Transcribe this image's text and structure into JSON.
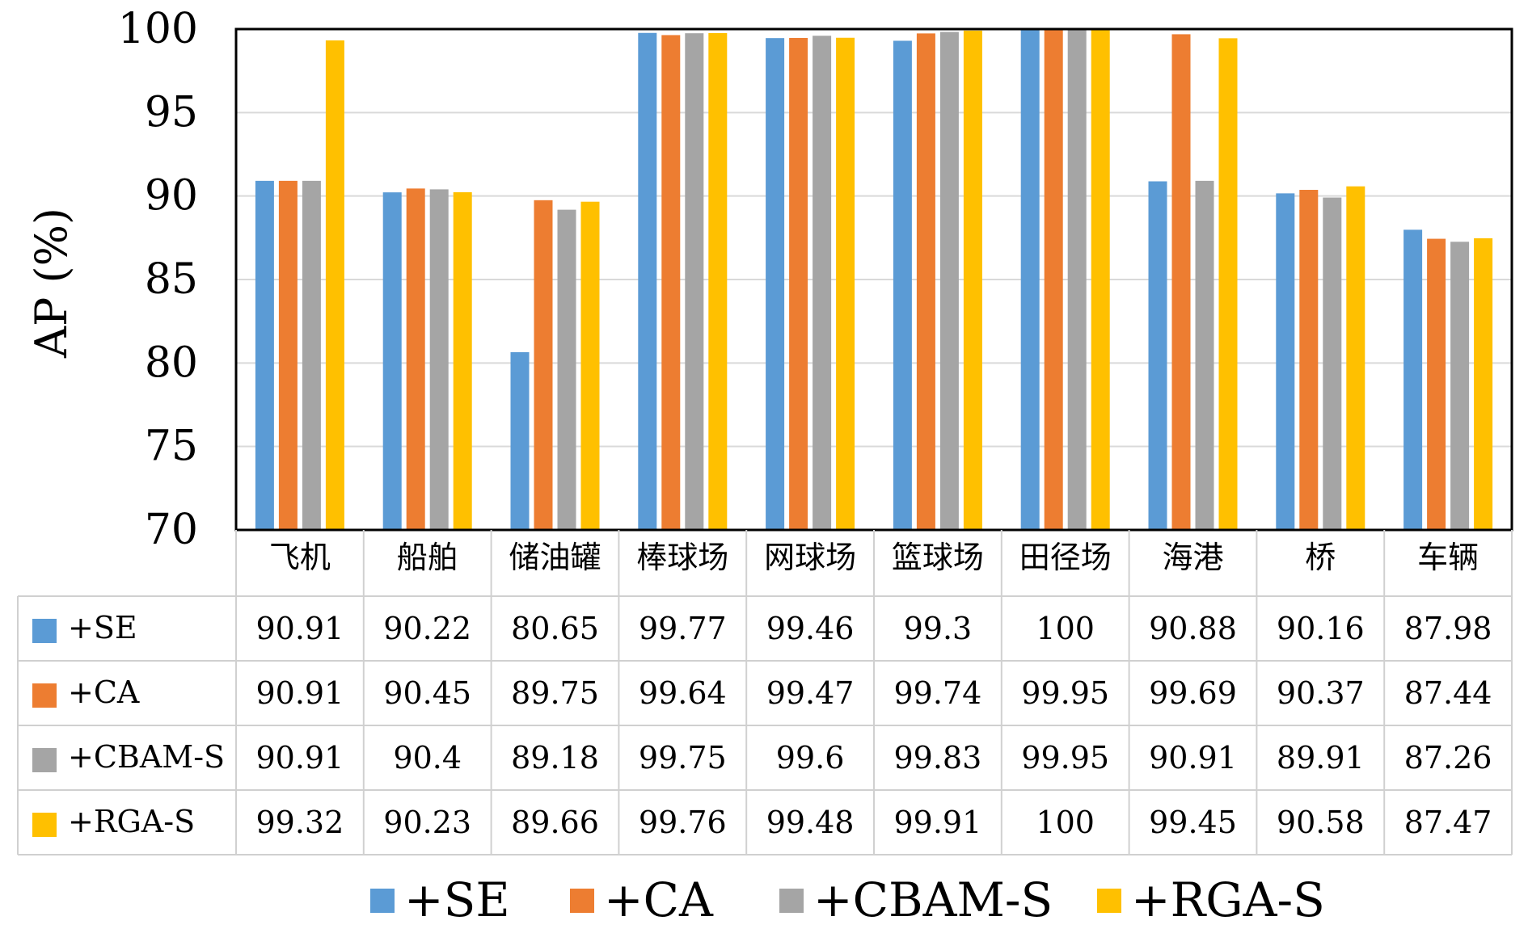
{
  "chart_data": {
    "type": "bar",
    "ylabel": "AP (%)",
    "ylim": [
      70,
      100
    ],
    "yticks": [
      "70",
      "75",
      "80",
      "85",
      "90",
      "95",
      "100"
    ],
    "grid": true,
    "legend_position": "bottom",
    "categories": [
      "飞机",
      "船舶",
      "储油罐",
      "棒球场",
      "网球场",
      "篮球场",
      "田径场",
      "海港",
      "桥",
      "车辆"
    ],
    "series": [
      {
        "name": "+SE",
        "color": "#5B9BD5",
        "values": [
          90.91,
          90.22,
          80.65,
          99.77,
          99.46,
          99.3,
          100,
          90.88,
          90.16,
          87.98
        ]
      },
      {
        "name": "+CA",
        "color": "#ED7D31",
        "values": [
          90.91,
          90.45,
          89.75,
          99.64,
          99.47,
          99.74,
          99.95,
          99.69,
          90.37,
          87.44
        ]
      },
      {
        "name": "+CBAM-S",
        "color": "#A5A5A5",
        "values": [
          90.91,
          90.4,
          89.18,
          99.75,
          99.6,
          99.83,
          99.95,
          90.91,
          89.91,
          87.26
        ]
      },
      {
        "name": "+RGA-S",
        "color": "#FFC000",
        "values": [
          99.32,
          90.23,
          89.66,
          99.76,
          99.48,
          99.91,
          100,
          99.45,
          90.58,
          87.47
        ]
      }
    ],
    "table": [
      [
        "90.91",
        "90.22",
        "80.65",
        "99.77",
        "99.46",
        "99.3",
        "100",
        "90.88",
        "90.16",
        "87.98"
      ],
      [
        "90.91",
        "90.45",
        "89.75",
        "99.64",
        "99.47",
        "99.74",
        "99.95",
        "99.69",
        "90.37",
        "87.44"
      ],
      [
        "90.91",
        "90.4",
        "89.18",
        "99.75",
        "99.6",
        "99.83",
        "99.95",
        "90.91",
        "89.91",
        "87.26"
      ],
      [
        "99.32",
        "90.23",
        "89.66",
        "99.76",
        "99.48",
        "99.91",
        "100",
        "99.45",
        "90.58",
        "87.47"
      ]
    ]
  }
}
